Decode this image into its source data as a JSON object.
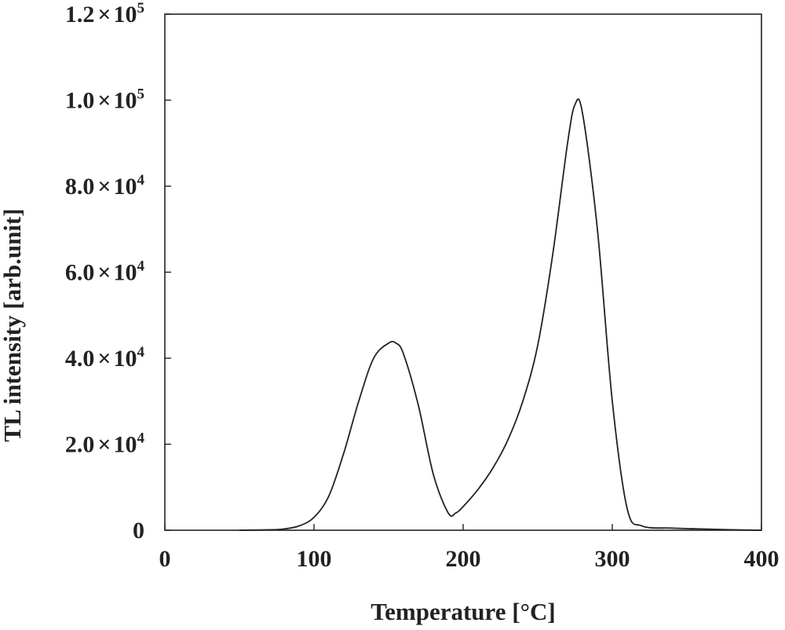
{
  "chart_data": {
    "type": "line",
    "xlabel": "Temperature [°C]",
    "ylabel": "TL intensity [arb.unit]",
    "xlim": [
      0,
      400
    ],
    "ylim": [
      0,
      120000
    ],
    "grid": false,
    "x_ticks": [
      {
        "value": 0,
        "label": "0"
      },
      {
        "value": 100,
        "label": "100"
      },
      {
        "value": 200,
        "label": "200"
      },
      {
        "value": 300,
        "label": "300"
      },
      {
        "value": 400,
        "label": "400"
      }
    ],
    "y_ticks": [
      {
        "value": 0,
        "mantissa": "0",
        "times": "",
        "base": "",
        "exponent": ""
      },
      {
        "value": 20000,
        "mantissa": "2.0",
        "times": "×",
        "base": "10",
        "exponent": "4"
      },
      {
        "value": 40000,
        "mantissa": "4.0",
        "times": "×",
        "base": "10",
        "exponent": "4"
      },
      {
        "value": 60000,
        "mantissa": "6.0",
        "times": "×",
        "base": "10",
        "exponent": "4"
      },
      {
        "value": 80000,
        "mantissa": "8.0",
        "times": "×",
        "base": "10",
        "exponent": "4"
      },
      {
        "value": 100000,
        "mantissa": "1.0",
        "times": "×",
        "base": "10",
        "exponent": "5"
      },
      {
        "value": 120000,
        "mantissa": "1.2",
        "times": "×",
        "base": "10",
        "exponent": "5"
      }
    ],
    "series": [
      {
        "color": "#222222",
        "x": [
          50,
          70,
          80,
          90,
          100,
          110,
          120,
          130,
          140,
          150,
          155,
          160,
          170,
          180,
          190,
          195,
          200,
          210,
          220,
          230,
          240,
          250,
          260,
          270,
          275,
          280,
          290,
          300,
          310,
          320,
          340,
          360,
          380,
          400
        ],
        "y": [
          0,
          100,
          300,
          1000,
          3000,
          8000,
          18000,
          30000,
          40000,
          43500,
          43500,
          41000,
          29000,
          13000,
          4000,
          4000,
          5500,
          9500,
          14500,
          21000,
          30000,
          43000,
          64000,
          90000,
          99000,
          97000,
          70000,
          30000,
          5000,
          1000,
          500,
          300,
          100,
          0
        ]
      }
    ]
  }
}
